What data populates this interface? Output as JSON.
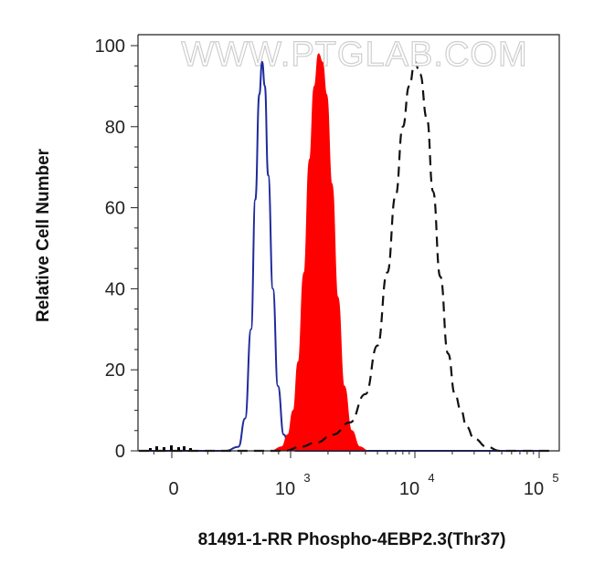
{
  "chart_data": {
    "type": "area",
    "title": "",
    "xlabel": "81491-1-RR Phospho-4EBP2.3(Thr37)",
    "ylabel": "Relative Cell Number",
    "watermark": "WWW.PTGLAB.COM",
    "x_scale": "biexponential",
    "xlim": [
      -300,
      120000
    ],
    "ylim": [
      0,
      100
    ],
    "y_ticks": [
      "0",
      "20",
      "40",
      "60",
      "80",
      "100"
    ],
    "x_ticks": [
      {
        "value": 0,
        "base": "0",
        "exp": ""
      },
      {
        "value": 1000,
        "base": "10",
        "exp": "3"
      },
      {
        "value": 10000,
        "base": "10",
        "exp": "4"
      },
      {
        "value": 100000,
        "base": "10",
        "exp": "5"
      }
    ],
    "grid": false,
    "series": [
      {
        "style": "blue-outline",
        "color": "#1f2a9c",
        "points": [
          [
            -300,
            0
          ],
          [
            300,
            0
          ],
          [
            380,
            1
          ],
          [
            430,
            8
          ],
          [
            480,
            30
          ],
          [
            520,
            62
          ],
          [
            560,
            88
          ],
          [
            590,
            96
          ],
          [
            620,
            90
          ],
          [
            660,
            68
          ],
          [
            720,
            40
          ],
          [
            790,
            16
          ],
          [
            880,
            4
          ],
          [
            980,
            1
          ],
          [
            1100,
            0
          ],
          [
            120000,
            0
          ]
        ]
      },
      {
        "style": "red-filled",
        "color": "#ff0000",
        "points": [
          [
            -300,
            0
          ],
          [
            700,
            0
          ],
          [
            850,
            1
          ],
          [
            950,
            4
          ],
          [
            1050,
            10
          ],
          [
            1150,
            22
          ],
          [
            1280,
            44
          ],
          [
            1420,
            72
          ],
          [
            1550,
            90
          ],
          [
            1680,
            98
          ],
          [
            1800,
            96
          ],
          [
            1950,
            88
          ],
          [
            2150,
            66
          ],
          [
            2400,
            38
          ],
          [
            2700,
            16
          ],
          [
            3100,
            5
          ],
          [
            3600,
            1
          ],
          [
            4200,
            0
          ],
          [
            120000,
            0
          ]
        ]
      },
      {
        "style": "black-dashed",
        "color": "#111111",
        "points": [
          [
            -300,
            0
          ],
          [
            900,
            0
          ],
          [
            1200,
            1
          ],
          [
            1600,
            2
          ],
          [
            2200,
            4
          ],
          [
            3000,
            7
          ],
          [
            4000,
            14
          ],
          [
            5000,
            26
          ],
          [
            6000,
            44
          ],
          [
            7000,
            63
          ],
          [
            8000,
            80
          ],
          [
            9000,
            90
          ],
          [
            10000,
            96
          ],
          [
            11000,
            93
          ],
          [
            12500,
            82
          ],
          [
            14000,
            64
          ],
          [
            16000,
            43
          ],
          [
            18500,
            24
          ],
          [
            21000,
            14
          ],
          [
            23500,
            10
          ],
          [
            26000,
            6
          ],
          [
            30000,
            3
          ],
          [
            38000,
            1
          ],
          [
            48000,
            0
          ],
          [
            120000,
            0
          ]
        ]
      }
    ]
  }
}
